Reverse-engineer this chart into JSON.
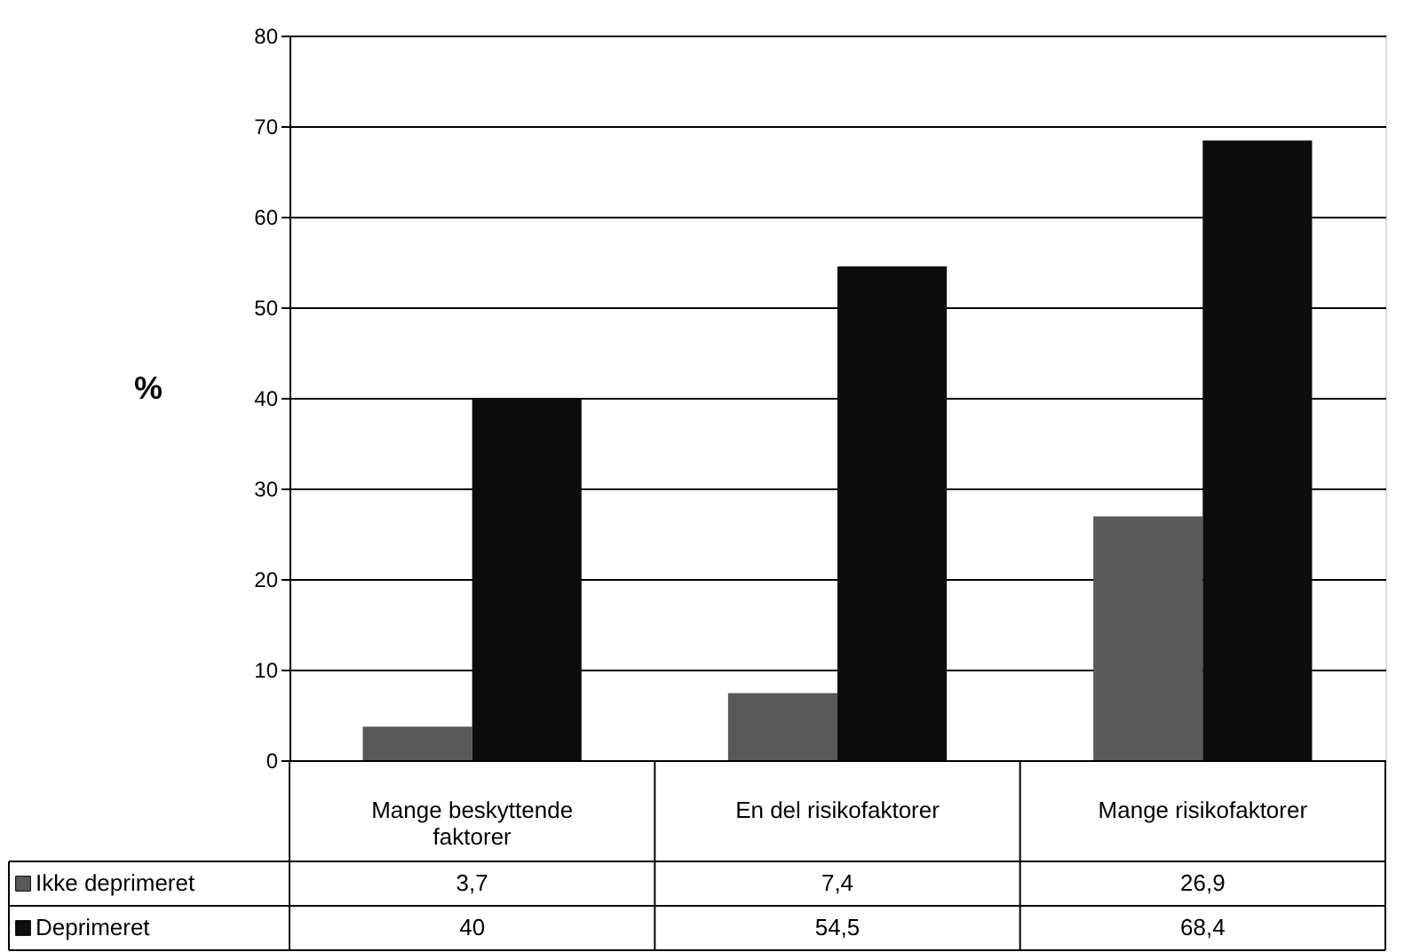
{
  "chart_data": {
    "type": "bar",
    "ylabel": "%",
    "categories": [
      "Mange beskyttende faktorer",
      "En del risikofaktorer",
      "Mange risikofaktorer"
    ],
    "series": [
      {
        "name": "Ikke deprimeret",
        "color": "#595959",
        "values": [
          3.7,
          7.4,
          26.9
        ],
        "value_labels": [
          "3,7",
          "7,4",
          "26,9"
        ]
      },
      {
        "name": "Deprimeret",
        "color": "#0d0d0d",
        "values": [
          40,
          54.5,
          68.4
        ],
        "value_labels": [
          "40",
          "54,5",
          "68,4"
        ]
      }
    ],
    "ylim": [
      0,
      80
    ],
    "yticks": [
      0,
      10,
      20,
      30,
      40,
      50,
      60,
      70,
      80
    ],
    "grid": "y",
    "legend": "bottom left"
  }
}
